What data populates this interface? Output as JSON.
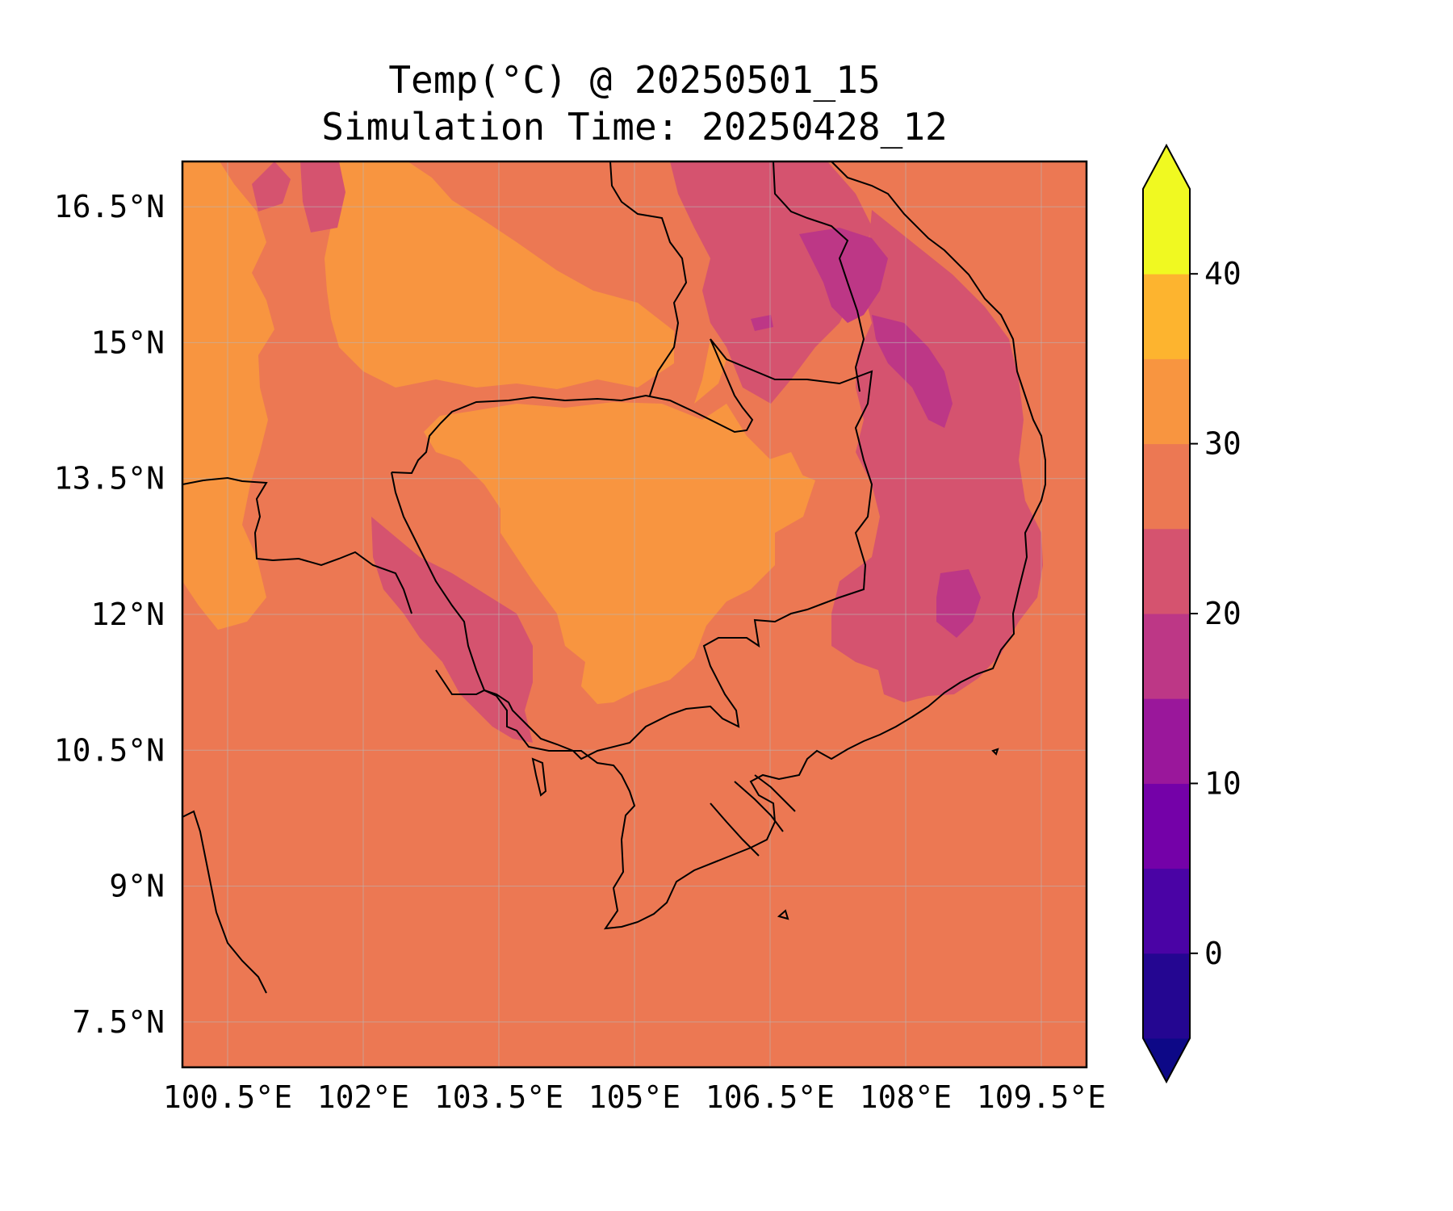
{
  "title_line1": "Temp(°C) @ 20250501_15",
  "title_line2": "Simulation Time: 20250428_12",
  "map": {
    "lon_range": [
      100.0,
      110.0
    ],
    "lat_range": [
      7.0,
      17.0
    ],
    "lon_ticks": [
      {
        "value": 100.5,
        "label": "100.5°E"
      },
      {
        "value": 102.0,
        "label": "102°E"
      },
      {
        "value": 103.5,
        "label": "103.5°E"
      },
      {
        "value": 105.0,
        "label": "105°E"
      },
      {
        "value": 106.5,
        "label": "106.5°E"
      },
      {
        "value": 108.0,
        "label": "108°E"
      },
      {
        "value": 109.5,
        "label": "109.5°E"
      }
    ],
    "lat_ticks": [
      {
        "value": 16.5,
        "label": "16.5°N"
      },
      {
        "value": 15.0,
        "label": "15°N"
      },
      {
        "value": 13.5,
        "label": "13.5°N"
      },
      {
        "value": 12.0,
        "label": "12°N"
      },
      {
        "value": 10.5,
        "label": "10.5°N"
      },
      {
        "value": 9.0,
        "label": "9°N"
      },
      {
        "value": 7.5,
        "label": "7.5°N"
      }
    ],
    "grid": true,
    "background_level": "25-30"
  },
  "colorbar": {
    "levels": [
      -5,
      0,
      5,
      10,
      15,
      20,
      25,
      30,
      35,
      40,
      45
    ],
    "colors": [
      "#240691",
      "#4a03a5",
      "#7401a8",
      "#9a179b",
      "#bd3786",
      "#d5536f",
      "#ec7853",
      "#f89540",
      "#fdb42f",
      "#f0f921"
    ],
    "under_color": "#0d0887",
    "over_color": "#f0f921",
    "ticks": [
      {
        "value": 0,
        "label": "0"
      },
      {
        "value": 10,
        "label": "10"
      },
      {
        "value": 20,
        "label": "20"
      },
      {
        "value": 30,
        "label": "30"
      },
      {
        "value": 40,
        "label": "40"
      }
    ],
    "extend": "both"
  }
}
